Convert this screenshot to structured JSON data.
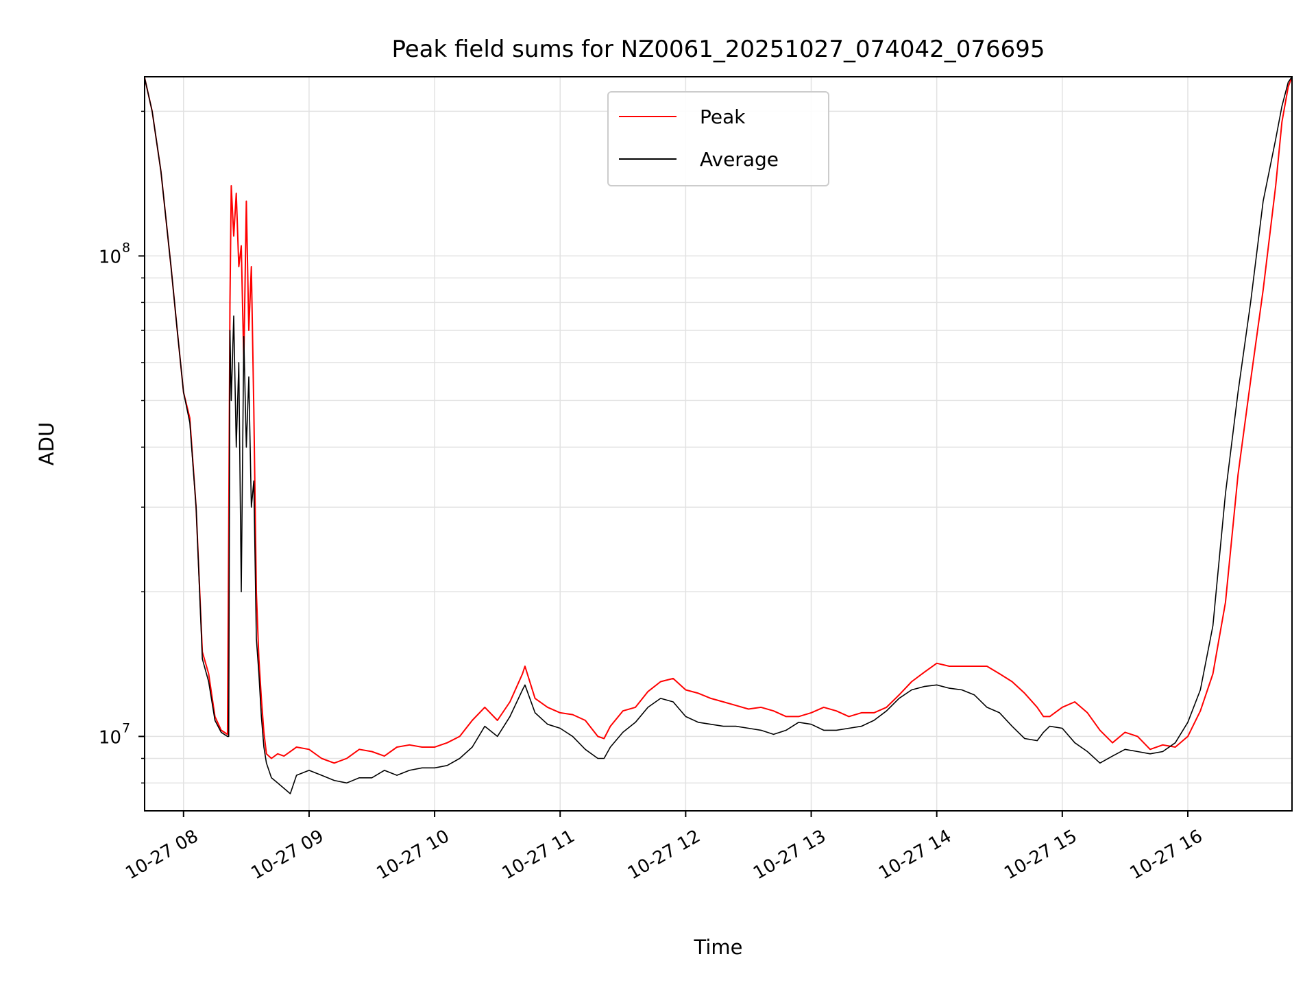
{
  "chart_data": {
    "type": "line",
    "title": "Peak field sums for NZ0061_20251027_074042_076695",
    "xlabel": "Time",
    "ylabel": "ADU",
    "yscale": "log",
    "ylim": [
      7000000,
      236000000
    ],
    "xlim_hours": [
      7.69,
      16.83
    ],
    "grid": true,
    "legend_position": "upper-center",
    "x_ticks": [
      {
        "hour": 8,
        "label": "10-27 08"
      },
      {
        "hour": 9,
        "label": "10-27 09"
      },
      {
        "hour": 10,
        "label": "10-27 10"
      },
      {
        "hour": 11,
        "label": "10-27 11"
      },
      {
        "hour": 12,
        "label": "10-27 12"
      },
      {
        "hour": 13,
        "label": "10-27 13"
      },
      {
        "hour": 14,
        "label": "10-27 14"
      },
      {
        "hour": 15,
        "label": "10-27 15"
      },
      {
        "hour": 16,
        "label": "10-27 16"
      }
    ],
    "y_ticks": [
      {
        "value": 10000000,
        "base": "10",
        "exp": "7"
      },
      {
        "value": 100000000,
        "base": "10",
        "exp": "8"
      }
    ],
    "series": [
      {
        "name": "Peak",
        "color": "#ff0000",
        "x_hours": [
          7.69,
          7.75,
          7.82,
          7.9,
          7.95,
          8.0,
          8.05,
          8.1,
          8.15,
          8.2,
          8.25,
          8.3,
          8.35,
          8.36,
          8.37,
          8.38,
          8.4,
          8.42,
          8.44,
          8.46,
          8.48,
          8.5,
          8.52,
          8.54,
          8.56,
          8.58,
          8.6,
          8.62,
          8.64,
          8.66,
          8.7,
          8.75,
          8.8,
          8.85,
          8.9,
          9.0,
          9.1,
          9.2,
          9.3,
          9.4,
          9.5,
          9.6,
          9.7,
          9.8,
          9.9,
          10.0,
          10.1,
          10.2,
          10.3,
          10.4,
          10.5,
          10.6,
          10.7,
          10.72,
          10.8,
          10.9,
          11.0,
          11.1,
          11.2,
          11.3,
          11.35,
          11.4,
          11.5,
          11.6,
          11.7,
          11.8,
          11.9,
          12.0,
          12.1,
          12.2,
          12.3,
          12.4,
          12.5,
          12.6,
          12.7,
          12.8,
          12.9,
          13.0,
          13.1,
          13.2,
          13.3,
          13.4,
          13.5,
          13.6,
          13.7,
          13.8,
          13.9,
          14.0,
          14.1,
          14.2,
          14.3,
          14.4,
          14.5,
          14.6,
          14.7,
          14.8,
          14.85,
          14.9,
          15.0,
          15.1,
          15.2,
          15.3,
          15.4,
          15.5,
          15.6,
          15.7,
          15.8,
          15.9,
          16.0,
          16.1,
          16.2,
          16.3,
          16.4,
          16.5,
          16.6,
          16.7,
          16.75,
          16.8,
          16.83
        ],
        "values": [
          235000000,
          200000000,
          150000000,
          95000000,
          70000000,
          52000000,
          46000000,
          30000000,
          15000000,
          13500000,
          11000000,
          10300000,
          10100000,
          27000000,
          80000000,
          140000000,
          110000000,
          135000000,
          95000000,
          105000000,
          60000000,
          130000000,
          70000000,
          95000000,
          48000000,
          20000000,
          14500000,
          12000000,
          10200000,
          9200000,
          9000000,
          9200000,
          9100000,
          9300000,
          9500000,
          9400000,
          9000000,
          8800000,
          9000000,
          9400000,
          9300000,
          9100000,
          9500000,
          9600000,
          9500000,
          9500000,
          9700000,
          10000000,
          10800000,
          11500000,
          10800000,
          11800000,
          13500000,
          14000000,
          12000000,
          11500000,
          11200000,
          11100000,
          10800000,
          10000000,
          9900000,
          10500000,
          11300000,
          11500000,
          12400000,
          13000000,
          13200000,
          12500000,
          12300000,
          12000000,
          11800000,
          11600000,
          11400000,
          11500000,
          11300000,
          11000000,
          11000000,
          11200000,
          11500000,
          11300000,
          11000000,
          11200000,
          11200000,
          11500000,
          12200000,
          13000000,
          13600000,
          14200000,
          14000000,
          14000000,
          14000000,
          14000000,
          13500000,
          13000000,
          12300000,
          11500000,
          11000000,
          11000000,
          11500000,
          11800000,
          11200000,
          10300000,
          9700000,
          10200000,
          10000000,
          9400000,
          9600000,
          9500000,
          10000000,
          11300000,
          13500000,
          19000000,
          35000000,
          55000000,
          85000000,
          140000000,
          190000000,
          225000000,
          236000000
        ]
      },
      {
        "name": "Average",
        "color": "#000000",
        "x_hours": [
          7.69,
          7.75,
          7.82,
          7.9,
          7.95,
          8.0,
          8.05,
          8.1,
          8.15,
          8.2,
          8.25,
          8.3,
          8.35,
          8.36,
          8.37,
          8.38,
          8.4,
          8.42,
          8.44,
          8.46,
          8.48,
          8.5,
          8.52,
          8.54,
          8.56,
          8.58,
          8.6,
          8.62,
          8.64,
          8.66,
          8.7,
          8.75,
          8.8,
          8.85,
          8.9,
          9.0,
          9.1,
          9.2,
          9.3,
          9.4,
          9.5,
          9.6,
          9.7,
          9.8,
          9.9,
          10.0,
          10.1,
          10.2,
          10.3,
          10.4,
          10.5,
          10.6,
          10.7,
          10.72,
          10.8,
          10.9,
          11.0,
          11.1,
          11.2,
          11.3,
          11.35,
          11.4,
          11.5,
          11.6,
          11.7,
          11.8,
          11.9,
          12.0,
          12.1,
          12.2,
          12.3,
          12.4,
          12.5,
          12.6,
          12.7,
          12.8,
          12.9,
          13.0,
          13.1,
          13.2,
          13.3,
          13.4,
          13.5,
          13.6,
          13.7,
          13.8,
          13.9,
          14.0,
          14.1,
          14.2,
          14.3,
          14.4,
          14.5,
          14.6,
          14.7,
          14.8,
          14.85,
          14.9,
          15.0,
          15.1,
          15.2,
          15.3,
          15.4,
          15.5,
          15.6,
          15.7,
          15.8,
          15.9,
          16.0,
          16.1,
          16.2,
          16.3,
          16.4,
          16.5,
          16.6,
          16.7,
          16.75,
          16.8,
          16.83
        ],
        "values": [
          235000000,
          200000000,
          150000000,
          95000000,
          70000000,
          52000000,
          45000000,
          30000000,
          14500000,
          13000000,
          10800000,
          10200000,
          10000000,
          10000000,
          70000000,
          50000000,
          75000000,
          40000000,
          60000000,
          20000000,
          68000000,
          40000000,
          56000000,
          30000000,
          34000000,
          16000000,
          13500000,
          11000000,
          9500000,
          8800000,
          8200000,
          8000000,
          7800000,
          7600000,
          8300000,
          8500000,
          8300000,
          8100000,
          8000000,
          8200000,
          8200000,
          8500000,
          8300000,
          8500000,
          8600000,
          8600000,
          8700000,
          9000000,
          9500000,
          10500000,
          10000000,
          11000000,
          12500000,
          12800000,
          11200000,
          10600000,
          10400000,
          10000000,
          9400000,
          9000000,
          9000000,
          9500000,
          10200000,
          10700000,
          11500000,
          12000000,
          11800000,
          11000000,
          10700000,
          10600000,
          10500000,
          10500000,
          10400000,
          10300000,
          10100000,
          10300000,
          10700000,
          10600000,
          10300000,
          10300000,
          10400000,
          10500000,
          10800000,
          11300000,
          12000000,
          12500000,
          12700000,
          12800000,
          12600000,
          12500000,
          12200000,
          11500000,
          11200000,
          10500000,
          9900000,
          9800000,
          10200000,
          10500000,
          10400000,
          9700000,
          9300000,
          8800000,
          9100000,
          9400000,
          9300000,
          9200000,
          9300000,
          9700000,
          10700000,
          12500000,
          17000000,
          32000000,
          52000000,
          80000000,
          130000000,
          175000000,
          205000000,
          230000000,
          236000000
        ]
      }
    ]
  }
}
